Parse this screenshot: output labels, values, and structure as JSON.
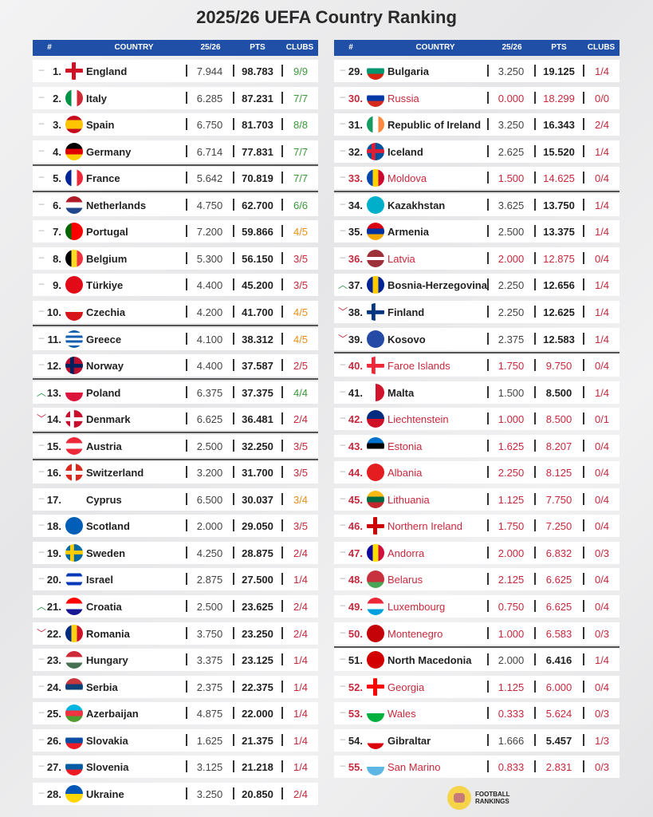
{
  "title": "2025/26 UEFA Country Ranking",
  "headers": {
    "rank": "#",
    "country": "COUNTRY",
    "season": "25/26",
    "pts": "PTS",
    "clubs": "CLUBS"
  },
  "colors": {
    "header": "#1f4fa6",
    "eliminated": "#c8283c",
    "clubs_full": "#3a9a3a",
    "clubs_partial": "#e8901a",
    "clubs_low": "#c8283c",
    "trend_up": "#2f9a4a",
    "trend_down": "#c8283c"
  },
  "trend_icons": {
    "same": "–",
    "up": "︿",
    "down": "﹀"
  },
  "logo": {
    "line1": "FOOTBALL",
    "line2": "RANKINGS"
  },
  "left": [
    {
      "rank": "1.",
      "trend": "same",
      "name": "England",
      "s": "7.944",
      "p": "98.783",
      "c": "9/9",
      "cc": "green",
      "flag": {
        "t": "x",
        "c": [
          "#ffffff",
          "#ce1124"
        ]
      }
    },
    {
      "rank": "2.",
      "trend": "same",
      "name": "Italy",
      "s": "6.285",
      "p": "87.231",
      "c": "7/7",
      "cc": "green",
      "flag": {
        "t": "v",
        "c": [
          "#009246",
          "#ffffff",
          "#ce2b37"
        ]
      }
    },
    {
      "rank": "3.",
      "trend": "same",
      "name": "Spain",
      "s": "6.750",
      "p": "81.703",
      "c": "8/8",
      "cc": "green",
      "flag": {
        "t": "h",
        "c": [
          "#c60b1e",
          "#ffc400",
          "#ffc400",
          "#c60b1e"
        ]
      }
    },
    {
      "rank": "4.",
      "trend": "same",
      "name": "Germany",
      "s": "6.714",
      "p": "77.831",
      "c": "7/7",
      "cc": "green",
      "sep": true,
      "flag": {
        "t": "h",
        "c": [
          "#000000",
          "#dd0000",
          "#ffce00"
        ]
      }
    },
    {
      "rank": "5.",
      "trend": "same",
      "name": "France",
      "s": "5.642",
      "p": "70.819",
      "c": "7/7",
      "cc": "green",
      "sep": true,
      "flag": {
        "t": "v",
        "c": [
          "#002395",
          "#ffffff",
          "#ed2939"
        ]
      }
    },
    {
      "rank": "6.",
      "trend": "same",
      "name": "Netherlands",
      "s": "4.750",
      "p": "62.700",
      "c": "6/6",
      "cc": "green",
      "flag": {
        "t": "h",
        "c": [
          "#ae1c28",
          "#ffffff",
          "#21468b"
        ]
      }
    },
    {
      "rank": "7.",
      "trend": "same",
      "name": "Portugal",
      "s": "7.200",
      "p": "59.866",
      "c": "4/5",
      "cc": "orange",
      "flag": {
        "t": "v",
        "c": [
          "#006600",
          "#ff0000",
          "#ff0000"
        ]
      }
    },
    {
      "rank": "8.",
      "trend": "same",
      "name": "Belgium",
      "s": "5.300",
      "p": "56.150",
      "c": "3/5",
      "cc": "red",
      "flag": {
        "t": "v",
        "c": [
          "#000000",
          "#fdda24",
          "#ef3340"
        ]
      }
    },
    {
      "rank": "9.",
      "trend": "same",
      "name": "Türkiye",
      "s": "4.400",
      "p": "45.200",
      "c": "3/5",
      "cc": "red",
      "flag": {
        "t": "h",
        "c": [
          "#e30a17"
        ]
      }
    },
    {
      "rank": "10.",
      "trend": "same",
      "name": "Czechia",
      "s": "4.200",
      "p": "41.700",
      "c": "4/5",
      "cc": "orange",
      "sep": true,
      "flag": {
        "t": "h",
        "c": [
          "#ffffff",
          "#d7141a"
        ]
      }
    },
    {
      "rank": "11.",
      "trend": "same",
      "name": "Greece",
      "s": "4.100",
      "p": "38.312",
      "c": "4/5",
      "cc": "orange",
      "flag": {
        "t": "h",
        "c": [
          "#0d5eaf",
          "#ffffff",
          "#0d5eaf",
          "#ffffff",
          "#0d5eaf",
          "#ffffff",
          "#0d5eaf"
        ]
      }
    },
    {
      "rank": "12.",
      "trend": "same",
      "name": "Norway",
      "s": "4.400",
      "p": "37.587",
      "c": "2/5",
      "cc": "red",
      "sep": true,
      "flag": {
        "t": "n",
        "c": [
          "#ba0c2f",
          "#00205b"
        ]
      }
    },
    {
      "rank": "13.",
      "trend": "up",
      "name": "Poland",
      "s": "6.375",
      "p": "37.375",
      "c": "4/4",
      "cc": "green",
      "flag": {
        "t": "h",
        "c": [
          "#ffffff",
          "#dc143c"
        ]
      }
    },
    {
      "rank": "14.",
      "trend": "down",
      "name": "Denmark",
      "s": "6.625",
      "p": "36.481",
      "c": "2/4",
      "cc": "red",
      "sep": true,
      "flag": {
        "t": "n",
        "c": [
          "#c8102e",
          "#ffffff"
        ]
      }
    },
    {
      "rank": "15.",
      "trend": "same",
      "name": "Austria",
      "s": "2.500",
      "p": "32.250",
      "c": "3/5",
      "cc": "red",
      "sep": true,
      "flag": {
        "t": "h",
        "c": [
          "#ed2939",
          "#ffffff",
          "#ed2939"
        ]
      }
    },
    {
      "rank": "16.",
      "trend": "same",
      "name": "Switzerland",
      "s": "3.200",
      "p": "31.700",
      "c": "3/5",
      "cc": "red",
      "flag": {
        "t": "x",
        "c": [
          "#da291c",
          "#ffffff"
        ]
      }
    },
    {
      "rank": "17.",
      "trend": "same",
      "name": "Cyprus",
      "s": "6.500",
      "p": "30.037",
      "c": "3/4",
      "cc": "orange",
      "flag": {
        "t": "h",
        "c": [
          "#ffffff"
        ]
      }
    },
    {
      "rank": "18.",
      "trend": "same",
      "name": "Scotland",
      "s": "2.000",
      "p": "29.050",
      "c": "3/5",
      "cc": "red",
      "flag": {
        "t": "h",
        "c": [
          "#005eb8"
        ]
      }
    },
    {
      "rank": "19.",
      "trend": "same",
      "name": "Sweden",
      "s": "4.250",
      "p": "28.875",
      "c": "2/4",
      "cc": "red",
      "flag": {
        "t": "n",
        "c": [
          "#006aa7",
          "#fecc00"
        ]
      }
    },
    {
      "rank": "20.",
      "trend": "same",
      "name": "Israel",
      "s": "2.875",
      "p": "27.500",
      "c": "1/4",
      "cc": "red",
      "flag": {
        "t": "h",
        "c": [
          "#ffffff",
          "#0038b8",
          "#ffffff",
          "#ffffff",
          "#0038b8",
          "#ffffff"
        ]
      }
    },
    {
      "rank": "21.",
      "trend": "up",
      "name": "Croatia",
      "s": "2.500",
      "p": "23.625",
      "c": "2/4",
      "cc": "red",
      "flag": {
        "t": "h",
        "c": [
          "#ff0000",
          "#ffffff",
          "#171796"
        ]
      }
    },
    {
      "rank": "22.",
      "trend": "down",
      "name": "Romania",
      "s": "3.750",
      "p": "23.250",
      "c": "2/4",
      "cc": "red",
      "flag": {
        "t": "v",
        "c": [
          "#002b7f",
          "#fcd116",
          "#ce1126"
        ]
      }
    },
    {
      "rank": "23.",
      "trend": "same",
      "name": "Hungary",
      "s": "3.375",
      "p": "23.125",
      "c": "1/4",
      "cc": "red",
      "flag": {
        "t": "h",
        "c": [
          "#ce2939",
          "#ffffff",
          "#477050"
        ]
      }
    },
    {
      "rank": "24.",
      "trend": "same",
      "name": "Serbia",
      "s": "2.375",
      "p": "22.375",
      "c": "1/4",
      "cc": "red",
      "flag": {
        "t": "h",
        "c": [
          "#c6363c",
          "#0c4076",
          "#ffffff"
        ]
      }
    },
    {
      "rank": "25.",
      "trend": "same",
      "name": "Azerbaijan",
      "s": "4.875",
      "p": "22.000",
      "c": "1/4",
      "cc": "red",
      "flag": {
        "t": "h",
        "c": [
          "#00b5e2",
          "#ef3340",
          "#509e2f"
        ]
      }
    },
    {
      "rank": "26.",
      "trend": "same",
      "name": "Slovakia",
      "s": "1.625",
      "p": "21.375",
      "c": "1/4",
      "cc": "red",
      "flag": {
        "t": "h",
        "c": [
          "#ffffff",
          "#0b4ea2",
          "#ee1c25"
        ]
      }
    },
    {
      "rank": "27.",
      "trend": "same",
      "name": "Slovenia",
      "s": "3.125",
      "p": "21.218",
      "c": "1/4",
      "cc": "red",
      "flag": {
        "t": "h",
        "c": [
          "#ffffff",
          "#005da4",
          "#ed1c24"
        ]
      }
    },
    {
      "rank": "28.",
      "trend": "same",
      "name": "Ukraine",
      "s": "3.250",
      "p": "20.850",
      "c": "2/4",
      "cc": "red",
      "flag": {
        "t": "h",
        "c": [
          "#0057b7",
          "#ffd700"
        ]
      }
    }
  ],
  "right": [
    {
      "rank": "29.",
      "trend": "same",
      "name": "Bulgaria",
      "s": "3.250",
      "p": "19.125",
      "c": "1/4",
      "cc": "red",
      "flag": {
        "t": "h",
        "c": [
          "#ffffff",
          "#00966e",
          "#d62612"
        ]
      }
    },
    {
      "rank": "30.",
      "trend": "same",
      "name": "Russia",
      "s": "0.000",
      "p": "18.299",
      "c": "0/0",
      "out": true,
      "flag": {
        "t": "h",
        "c": [
          "#ffffff",
          "#0039a6",
          "#d52b1e"
        ]
      }
    },
    {
      "rank": "31.",
      "trend": "same",
      "name": "Republic of Ireland",
      "s": "3.250",
      "p": "16.343",
      "c": "2/4",
      "cc": "red",
      "flag": {
        "t": "v",
        "c": [
          "#169b62",
          "#ffffff",
          "#ff883e"
        ]
      }
    },
    {
      "rank": "32.",
      "trend": "same",
      "name": "Iceland",
      "s": "2.625",
      "p": "15.520",
      "c": "1/4",
      "cc": "red",
      "flag": {
        "t": "n",
        "c": [
          "#02529c",
          "#dc1e35"
        ]
      }
    },
    {
      "rank": "33.",
      "trend": "same",
      "name": "Moldova",
      "s": "1.500",
      "p": "14.625",
      "c": "0/4",
      "out": true,
      "sep": true,
      "flag": {
        "t": "v",
        "c": [
          "#0046ae",
          "#ffd200",
          "#cc092f"
        ]
      }
    },
    {
      "rank": "34.",
      "trend": "same",
      "name": "Kazakhstan",
      "s": "3.625",
      "p": "13.750",
      "c": "1/4",
      "cc": "red",
      "flag": {
        "t": "h",
        "c": [
          "#00afca"
        ]
      }
    },
    {
      "rank": "35.",
      "trend": "same",
      "name": "Armenia",
      "s": "2.500",
      "p": "13.375",
      "c": "1/4",
      "cc": "red",
      "flag": {
        "t": "h",
        "c": [
          "#d90012",
          "#0033a0",
          "#f2a800"
        ]
      }
    },
    {
      "rank": "36.",
      "trend": "same",
      "name": "Latvia",
      "s": "2.000",
      "p": "12.875",
      "c": "0/4",
      "out": true,
      "flag": {
        "t": "h",
        "c": [
          "#9e3039",
          "#9e3039",
          "#ffffff",
          "#9e3039",
          "#9e3039"
        ]
      }
    },
    {
      "rank": "37.",
      "trend": "up",
      "name": "Bosnia-Herzegovina",
      "s": "2.250",
      "p": "12.656",
      "c": "1/4",
      "cc": "red",
      "flag": {
        "t": "v",
        "c": [
          "#002395",
          "#fecb00",
          "#002395"
        ]
      }
    },
    {
      "rank": "38.",
      "trend": "down",
      "name": "Finland",
      "s": "2.250",
      "p": "12.625",
      "c": "1/4",
      "cc": "red",
      "flag": {
        "t": "n",
        "c": [
          "#ffffff",
          "#003580"
        ]
      }
    },
    {
      "rank": "39.",
      "trend": "down",
      "name": "Kosovo",
      "s": "2.375",
      "p": "12.583",
      "c": "1/4",
      "cc": "red",
      "sep": true,
      "flag": {
        "t": "h",
        "c": [
          "#244aa5"
        ]
      }
    },
    {
      "rank": "40.",
      "trend": "same",
      "name": "Faroe Islands",
      "s": "1.750",
      "p": "9.750",
      "c": "0/4",
      "out": true,
      "flag": {
        "t": "n",
        "c": [
          "#ffffff",
          "#ed2939"
        ]
      }
    },
    {
      "rank": "41.",
      "trend": "same",
      "name": "Malta",
      "s": "1.500",
      "p": "8.500",
      "c": "1/4",
      "cc": "red",
      "flag": {
        "t": "v",
        "c": [
          "#ffffff",
          "#cf142b"
        ]
      }
    },
    {
      "rank": "42.",
      "trend": "same",
      "name": "Liechtenstein",
      "s": "1.000",
      "p": "8.500",
      "c": "0/1",
      "out": true,
      "flag": {
        "t": "h",
        "c": [
          "#002b7f",
          "#ce1126"
        ]
      }
    },
    {
      "rank": "43.",
      "trend": "same",
      "name": "Estonia",
      "s": "1.625",
      "p": "8.207",
      "c": "0/4",
      "out": true,
      "flag": {
        "t": "h",
        "c": [
          "#0072ce",
          "#000000",
          "#ffffff"
        ]
      }
    },
    {
      "rank": "44.",
      "trend": "same",
      "name": "Albania",
      "s": "2.250",
      "p": "8.125",
      "c": "0/4",
      "out": true,
      "flag": {
        "t": "h",
        "c": [
          "#e41e20"
        ]
      }
    },
    {
      "rank": "45.",
      "trend": "same",
      "name": "Lithuania",
      "s": "1.125",
      "p": "7.750",
      "c": "0/4",
      "out": true,
      "flag": {
        "t": "h",
        "c": [
          "#fdb913",
          "#006a44",
          "#c1272d"
        ]
      }
    },
    {
      "rank": "46.",
      "trend": "same",
      "name": "Northern Ireland",
      "s": "1.750",
      "p": "7.250",
      "c": "0/4",
      "out": true,
      "flag": {
        "t": "x",
        "c": [
          "#ffffff",
          "#cc0000"
        ]
      }
    },
    {
      "rank": "47.",
      "trend": "same",
      "name": "Andorra",
      "s": "2.000",
      "p": "6.832",
      "c": "0/3",
      "out": true,
      "flag": {
        "t": "v",
        "c": [
          "#10069f",
          "#fedf00",
          "#d0103a"
        ]
      }
    },
    {
      "rank": "48.",
      "trend": "same",
      "name": "Belarus",
      "s": "2.125",
      "p": "6.625",
      "c": "0/4",
      "out": true,
      "flag": {
        "t": "h",
        "c": [
          "#c8313e",
          "#c8313e",
          "#4aa657"
        ]
      }
    },
    {
      "rank": "49.",
      "trend": "same",
      "name": "Luxembourg",
      "s": "0.750",
      "p": "6.625",
      "c": "0/4",
      "out": true,
      "flag": {
        "t": "h",
        "c": [
          "#ed2939",
          "#ffffff",
          "#00a1de"
        ]
      }
    },
    {
      "rank": "50.",
      "trend": "same",
      "name": "Montenegro",
      "s": "1.000",
      "p": "6.583",
      "c": "0/3",
      "out": true,
      "sep": true,
      "flag": {
        "t": "h",
        "c": [
          "#c40308"
        ]
      }
    },
    {
      "rank": "51.",
      "trend": "same",
      "name": "North Macedonia",
      "s": "2.000",
      "p": "6.416",
      "c": "1/4",
      "cc": "red",
      "flag": {
        "t": "h",
        "c": [
          "#d20000"
        ]
      }
    },
    {
      "rank": "52.",
      "trend": "same",
      "name": "Georgia",
      "s": "1.125",
      "p": "6.000",
      "c": "0/4",
      "out": true,
      "flag": {
        "t": "x",
        "c": [
          "#ffffff",
          "#ff0000"
        ]
      }
    },
    {
      "rank": "53.",
      "trend": "same",
      "name": "Wales",
      "s": "0.333",
      "p": "5.624",
      "c": "0/3",
      "out": true,
      "flag": {
        "t": "h",
        "c": [
          "#ffffff",
          "#00b140"
        ]
      }
    },
    {
      "rank": "54.",
      "trend": "same",
      "name": "Gibraltar",
      "s": "1.666",
      "p": "5.457",
      "c": "1/3",
      "cc": "red",
      "flag": {
        "t": "h",
        "c": [
          "#ffffff",
          "#ffffff",
          "#da000c"
        ]
      }
    },
    {
      "rank": "55.",
      "trend": "same",
      "name": "San Marino",
      "s": "0.833",
      "p": "2.831",
      "c": "0/3",
      "out": true,
      "flag": {
        "t": "h",
        "c": [
          "#ffffff",
          "#5eb6e4"
        ]
      }
    }
  ]
}
